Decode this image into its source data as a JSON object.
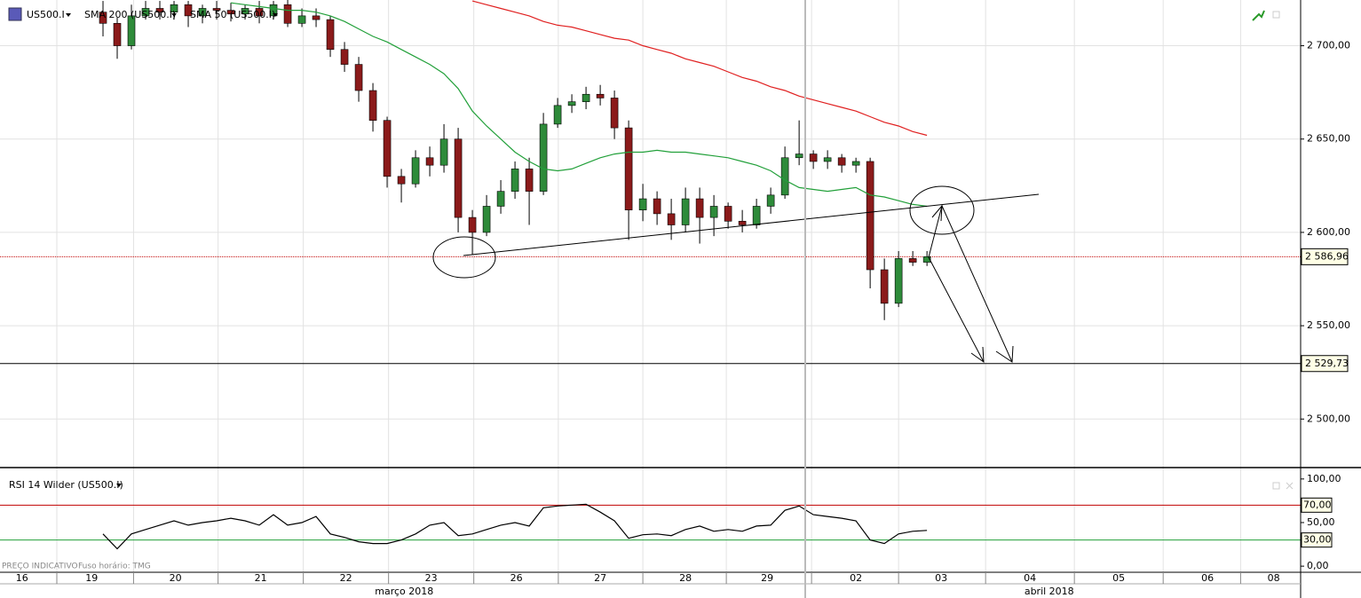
{
  "chart_data": [
    {
      "type": "candlestick",
      "up_color": "#2e8b3a",
      "down_color": "#8b1a1a",
      "categories": [
        null,
        null,
        null,
        null,
        null,
        null,
        null,
        null,
        null,
        null,
        null,
        null,
        null,
        null,
        null,
        null,
        null,
        null,
        null,
        null,
        null,
        null,
        null,
        null,
        null,
        null,
        null,
        null,
        null,
        null,
        null,
        null,
        null,
        null,
        null,
        null,
        null,
        null,
        null,
        null,
        null,
        null,
        null,
        null,
        null,
        null,
        null,
        null,
        null,
        null,
        null,
        null,
        null,
        null,
        null,
        null,
        null,
        null,
        null
      ],
      "series": [
        {
          "name": "US500.I",
          "color": "#000000",
          "open": [
            2718,
            2712,
            2700,
            2716,
            2720,
            2718,
            2722,
            2716,
            2720,
            2719,
            2717,
            2720,
            2716,
            2722,
            2712,
            2716,
            2714,
            2698,
            2690,
            2676,
            2660,
            2630,
            2626,
            2640,
            2636,
            2650,
            2608,
            2600,
            2614,
            2622,
            2634,
            2622,
            2658,
            2668,
            2670,
            2674,
            2672,
            2656,
            2612,
            2618,
            2610,
            2604,
            2618,
            2608,
            2614,
            2606,
            2604,
            2614,
            2620,
            2640,
            2642,
            2638,
            2640,
            2636,
            2638,
            2580,
            2562,
            2586,
            2584
          ],
          "high": [
            2724,
            2715,
            2722,
            2724,
            2724,
            2724,
            2724,
            2722,
            2724,
            2723,
            2722,
            2724,
            2724,
            2726,
            2720,
            2720,
            2716,
            2702,
            2694,
            2680,
            2662,
            2634,
            2644,
            2646,
            2658,
            2656,
            2612,
            2620,
            2628,
            2638,
            2640,
            2664,
            2672,
            2674,
            2678,
            2679,
            2676,
            2660,
            2626,
            2622,
            2618,
            2624,
            2624,
            2620,
            2616,
            2612,
            2618,
            2624,
            2646,
            2660,
            2644,
            2644,
            2642,
            2640,
            2640,
            2586,
            2590,
            2590,
            2590
          ],
          "low": [
            2705,
            2693,
            2698,
            2714,
            2714,
            2714,
            2710,
            2712,
            2714,
            2713,
            2714,
            2712,
            2714,
            2710,
            2710,
            2710,
            2694,
            2686,
            2670,
            2654,
            2624,
            2616,
            2624,
            2630,
            2632,
            2600,
            2588,
            2598,
            2610,
            2618,
            2604,
            2620,
            2656,
            2664,
            2666,
            2668,
            2650,
            2596,
            2606,
            2604,
            2596,
            2600,
            2594,
            2598,
            2602,
            2600,
            2602,
            2610,
            2618,
            2636,
            2634,
            2634,
            2632,
            2632,
            2570,
            2553,
            2560,
            2582,
            2582
          ],
          "close": [
            2712,
            2700,
            2716,
            2720,
            2718,
            2722,
            2716,
            2720,
            2719,
            2717,
            2720,
            2716,
            2722,
            2712,
            2716,
            2714,
            2698,
            2690,
            2676,
            2660,
            2630,
            2626,
            2640,
            2636,
            2650,
            2608,
            2600,
            2614,
            2622,
            2634,
            2622,
            2658,
            2668,
            2670,
            2674,
            2672,
            2656,
            2612,
            2618,
            2610,
            2604,
            2618,
            2608,
            2614,
            2606,
            2604,
            2614,
            2620,
            2640,
            2642,
            2638,
            2640,
            2636,
            2638,
            2580,
            2562,
            2586,
            2584,
            2587
          ]
        },
        {
          "name": "SMA 200 (US500.I)",
          "color": "#e02020",
          "values": [
            null,
            null,
            null,
            null,
            null,
            null,
            null,
            null,
            null,
            null,
            null,
            null,
            null,
            null,
            null,
            null,
            null,
            null,
            null,
            null,
            null,
            null,
            null,
            null,
            null,
            null,
            2724,
            2722,
            2720,
            2718,
            2716,
            2713,
            2711,
            2710,
            2708,
            2706,
            2704,
            2703,
            2700,
            2698,
            2696,
            2693,
            2691,
            2689,
            2686,
            2683,
            2681,
            2678,
            2676,
            2673,
            2671,
            2669,
            2667,
            2665,
            2662,
            2659,
            2657,
            2654,
            2652
          ]
        },
        {
          "name": "SMA 50 (US500.I)",
          "color": "#22a03a",
          "values": [
            null,
            null,
            null,
            null,
            null,
            null,
            null,
            null,
            null,
            2723,
            2722,
            2721,
            2720,
            2719,
            2719,
            2718,
            2716,
            2713,
            2709,
            2705,
            2702,
            2698,
            2694,
            2690,
            2685,
            2677,
            2665,
            2657,
            2650,
            2643,
            2638,
            2634,
            2633,
            2634,
            2637,
            2640,
            2642,
            2643,
            2643,
            2644,
            2643,
            2643,
            2642,
            2641,
            2640,
            2638,
            2636,
            2633,
            2628,
            2624,
            2623,
            2622,
            2623,
            2624,
            2620,
            2619,
            2617,
            2615,
            2614
          ]
        }
      ],
      "ylim": [
        2474,
        2724.5
      ],
      "yticks": [
        {
          "value": 2700,
          "label": "2 700,00"
        },
        {
          "value": 2650,
          "label": "2 650,00"
        },
        {
          "value": 2600,
          "label": "2 600,00"
        },
        {
          "value": 2550,
          "label": "2 550,00"
        },
        {
          "value": 2500,
          "label": "2 500,00"
        }
      ],
      "hlines": [
        {
          "value": 2586.96,
          "label": "2 586,96",
          "color": "#c00000",
          "style": "dotted"
        },
        {
          "value": 2529.73,
          "label": "2 529,73",
          "color": "#000000",
          "style": "solid"
        }
      ],
      "xlim": [
        -7.25,
        84.3
      ],
      "xticks": [
        {
          "value": -5.7,
          "label": "16"
        },
        {
          "value": -0.8,
          "label": "19"
        },
        {
          "value": 5.1,
          "label": "20"
        },
        {
          "value": 11.1,
          "label": "21"
        },
        {
          "value": 17.1,
          "label": "22"
        },
        {
          "value": 23.1,
          "label": "23"
        },
        {
          "value": 29.1,
          "label": "26"
        },
        {
          "value": 35,
          "label": "27"
        },
        {
          "value": 41,
          "label": "28"
        },
        {
          "value": 46.75,
          "label": "29"
        },
        {
          "value": 53,
          "label": "02"
        },
        {
          "value": 59,
          "label": "03"
        },
        {
          "value": 65.25,
          "label": "04"
        },
        {
          "value": 71.5,
          "label": "05"
        },
        {
          "value": 77.75,
          "label": "06"
        },
        {
          "value": 82.4,
          "label": "08"
        }
      ],
      "months": [
        {
          "value": 21.2,
          "label": "março 2018"
        },
        {
          "value": 66.6,
          "label": "abril 2018"
        }
      ],
      "grid": true
    },
    {
      "type": "line",
      "title": "RSI 14 Wilder (US500.I)",
      "color": "#000000",
      "values": [
        37,
        20,
        37,
        42,
        47,
        52,
        47,
        50,
        52,
        55,
        52,
        47,
        59,
        47,
        50,
        57,
        37,
        33,
        28,
        26,
        26,
        30,
        37,
        47,
        50,
        35,
        37,
        42,
        47,
        50,
        46,
        67,
        69,
        70,
        71,
        62,
        52,
        32,
        36,
        37,
        35,
        42,
        46,
        40,
        42,
        40,
        46,
        47,
        64,
        69,
        59,
        57,
        55,
        52,
        30,
        26,
        37,
        40,
        41
      ],
      "ylim": [
        -7,
        109
      ],
      "yticks": [
        {
          "value": 100,
          "label": "100,00"
        },
        {
          "value": 50,
          "label": "50,00"
        },
        {
          "value": 0,
          "label": "0,00"
        }
      ],
      "levels": [
        {
          "value": 70,
          "label": "70,00",
          "color": "#c00000"
        },
        {
          "value": 30,
          "label": "30,00",
          "color": "#22a03a"
        }
      ],
      "note": "PREÇO INDICATIVO",
      "timezone": "Fuso horário: TMG"
    }
  ]
}
